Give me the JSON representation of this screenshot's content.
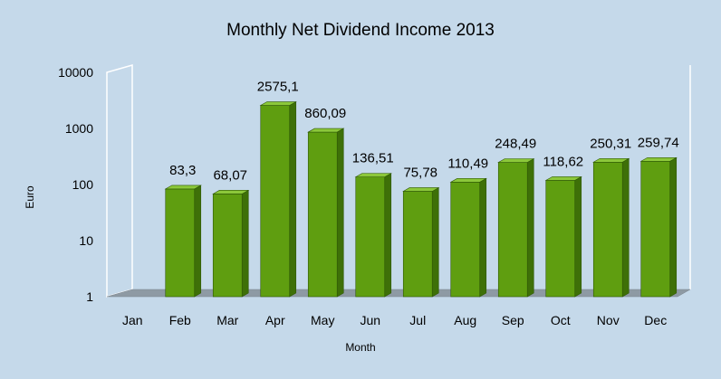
{
  "chart_data": {
    "type": "bar",
    "title": "Monthly Net Dividend Income 2013",
    "xlabel": "Month",
    "ylabel": "Euro",
    "yscale": "log",
    "ylim": [
      1,
      10000
    ],
    "yticks": [
      "1",
      "10",
      "100",
      "1000",
      "10000"
    ],
    "categories": [
      "Jan",
      "Feb",
      "Mar",
      "Apr",
      "May",
      "Jun",
      "Jul",
      "Aug",
      "Sep",
      "Oct",
      "Nov",
      "Dec"
    ],
    "values": [
      null,
      83.3,
      68.07,
      2575.1,
      860.09,
      136.51,
      75.78,
      110.49,
      248.49,
      118.62,
      250.31,
      259.74
    ],
    "data_labels": [
      "",
      "83,3",
      "68,07",
      "2575,1",
      "860,09",
      "136,51",
      "75,78",
      "110,49",
      "248,49",
      "118,62",
      "250,31",
      "259,74"
    ],
    "grid": false,
    "colors": {
      "background": "#c5d9ea",
      "bar_front": "#5f9e10",
      "bar_side": "#3e7008",
      "bar_top": "#8cc83a",
      "floor": "#8e9aa4"
    }
  }
}
